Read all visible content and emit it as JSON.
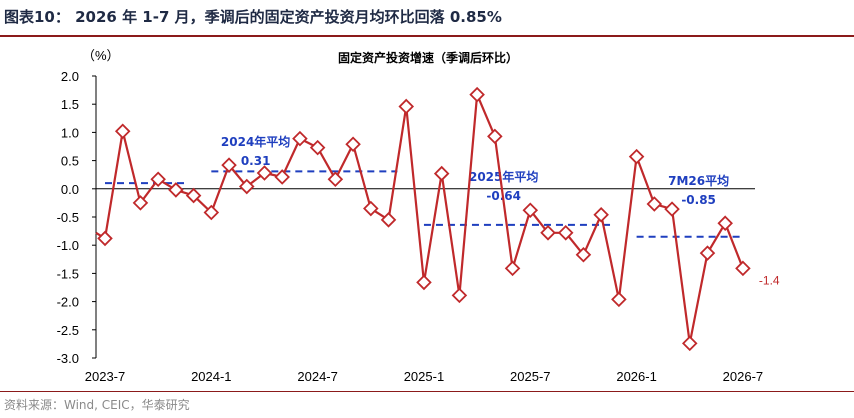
{
  "figure_title": "图表10：  2026 年 1-7 月，季调后的固定资产投资月均环比回落 0.85%",
  "source": "资料来源：Wind, CEIC，华泰研究",
  "chart_data": {
    "type": "line",
    "title": "固定资产投资增速（季调后环比）",
    "unit_label": "（%）",
    "ylim": [
      -3.0,
      2.0
    ],
    "yticks": [
      "2.0",
      "1.5",
      "1.0",
      "0.5",
      "0.0",
      "-0.5",
      "-1.0",
      "-1.5",
      "-2.0",
      "-2.5",
      "-3.0"
    ],
    "ytick_values": [
      2.0,
      1.5,
      1.0,
      0.5,
      0.0,
      -0.5,
      -1.0,
      -1.5,
      -2.0,
      -2.5,
      -3.0
    ],
    "xtick_labels": [
      "2023-7",
      "2024-1",
      "2024-7",
      "2025-1",
      "2025-7",
      "2026-1",
      "2026-7"
    ],
    "xtick_index": [
      0,
      6,
      12,
      18,
      24,
      30,
      36
    ],
    "series_color": "#c0292b",
    "marker_fill": "#ffffff",
    "avg_color": "#1f3fbf",
    "lead_in_value": -0.78,
    "values": [
      -0.88,
      1.02,
      -0.25,
      0.17,
      -0.02,
      -0.12,
      -0.42,
      0.42,
      0.04,
      0.28,
      0.21,
      0.89,
      0.73,
      0.17,
      0.79,
      -0.35,
      -0.55,
      1.46,
      -1.66,
      0.27,
      -1.89,
      1.67,
      0.93,
      -1.41,
      -0.38,
      -0.78,
      -0.78,
      -1.17,
      -0.46,
      -1.96,
      0.57,
      -0.27,
      -0.36,
      -2.74,
      -1.14,
      -0.61,
      -1.41
    ],
    "last_label": "-1.4",
    "averages": [
      {
        "label": "2024年平均",
        "value_label": "0.31",
        "value": 0.31,
        "from": 6,
        "to": 16.5
      },
      {
        "label": "2025年平均",
        "value_label": "-0.64",
        "value": -0.64,
        "from": 18,
        "to": 28.5
      },
      {
        "label": "7M26平均",
        "value_label": "-0.85",
        "value": -0.85,
        "from": 30,
        "to": 36
      }
    ],
    "extra_avg_segment": {
      "value": 0.1,
      "from": 0,
      "to": 4.5
    }
  }
}
